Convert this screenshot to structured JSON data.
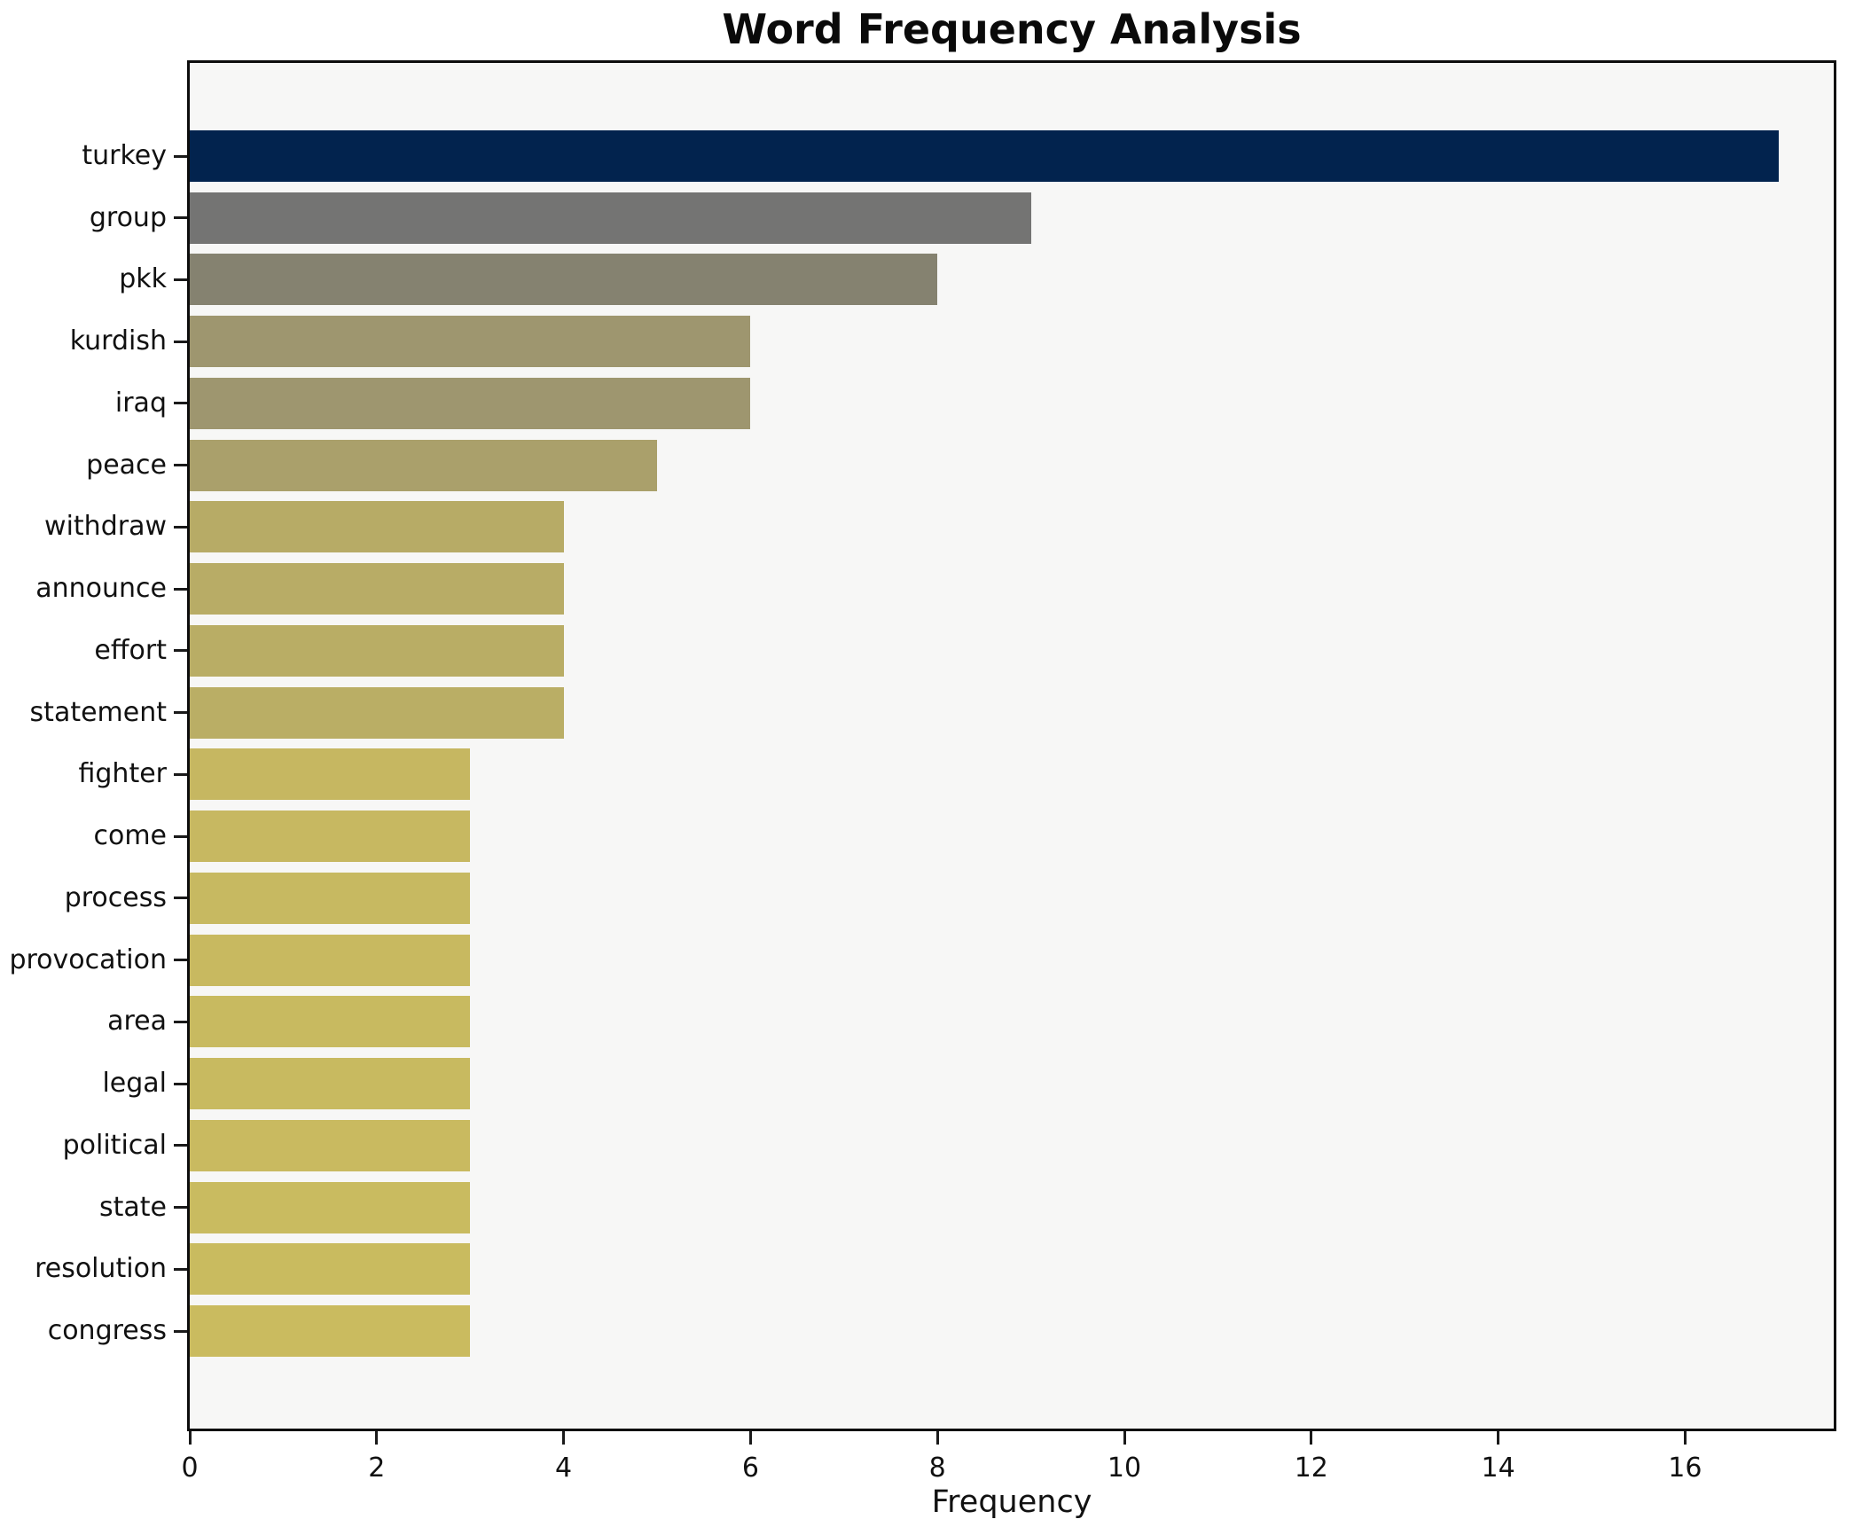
{
  "chart_data": {
    "type": "bar",
    "orientation": "horizontal",
    "title": "Word Frequency Analysis",
    "xlabel": "Frequency",
    "ylabel": "",
    "categories": [
      "turkey",
      "group",
      "pkk",
      "kurdish",
      "iraq",
      "peace",
      "withdraw",
      "announce",
      "effort",
      "statement",
      "fighter",
      "come",
      "process",
      "provocation",
      "area",
      "legal",
      "political",
      "state",
      "resolution",
      "congress"
    ],
    "values": [
      17,
      9,
      8,
      6,
      6,
      5,
      4,
      4,
      4,
      4,
      3,
      3,
      3,
      3,
      3,
      3,
      3,
      3,
      3,
      3
    ],
    "bar_colors": [
      "#02234e",
      "#747473",
      "#858270",
      "#9e966f",
      "#9e966f",
      "#aaa06b",
      "#b7ab66",
      "#b8ac66",
      "#b9ad65",
      "#baae65",
      "#c6b761",
      "#c7b861",
      "#c7b961",
      "#c8b960",
      "#c8ba60",
      "#c8ba60",
      "#c9ba60",
      "#c9bb60",
      "#c9bb5f",
      "#cabb5f"
    ],
    "xticks": [
      0,
      2,
      4,
      6,
      8,
      10,
      12,
      14,
      16
    ],
    "xlim": [
      0,
      17.6
    ],
    "grid": false,
    "legend_position": "none",
    "plot_background": "#f7f7f6",
    "figure_background": "#ffffff"
  }
}
